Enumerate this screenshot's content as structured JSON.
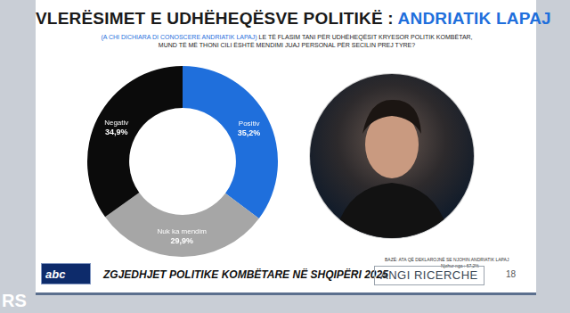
{
  "chart_data": {
    "type": "doughnut",
    "title": "VLERËSIMET E UDHËHEQËSVE POLITIKË : ANDRIATIK LAPAJ",
    "subtitle_note": "(A CHI DICHIARA DI CONOSCERE ANDRIATIK LAPAJ)",
    "subtitle": "LE TË FLASIM TANI PËR UDHËHEQËSIT KRYESOR POLITIK KOMBËTAR, MUND TË MË THONI CILI ËSHTË MENDIMI JUAJ PERSONAL PËR SECILIN PREJ TYRE?",
    "categories": [
      "Positiv",
      "Nuk ka mendim",
      "Negativ"
    ],
    "values": [
      35.2,
      29.9,
      34.9
    ],
    "value_labels": [
      "35,2%",
      "29,9%",
      "34,9%"
    ],
    "colors": [
      "#1f6fdc",
      "#a6a6a6",
      "#0b0b0b"
    ],
    "data_labels": true
  },
  "page": {
    "base_note": "BAZË: ATA QË DEKLAROJNË SE NJOHIN ANDRIATIK LAPAJ",
    "known_by": "Njohur nga : 67,2%",
    "footer_title": "ZGJEDHJET POLITIKE KOMBËTARE NË SHQIPËRI 2025",
    "logo": "abc",
    "source": "ANGI RICERCHE",
    "page_number": 18,
    "watermark": "RS"
  }
}
